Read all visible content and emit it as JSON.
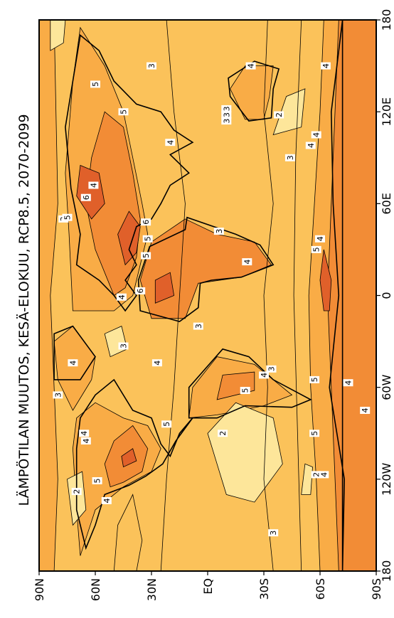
{
  "title": "LÄMPÖTILAN MUUTOS, KESÄ-ELOKUU, RCP8.5, 2070-2099",
  "lat_ticks": [
    "90N",
    "60N",
    "30N",
    "EQ",
    "30S",
    "60S",
    "90S"
  ],
  "lon_ticks": [
    "180",
    "120W",
    "60W",
    "0",
    "60E",
    "120E",
    "180"
  ],
  "colors": {
    "base": "#fbc25a",
    "level_2": "#fde69a",
    "level_4": "#f9ac46",
    "level_5": "#f28c36",
    "level_6": "#e0602a",
    "contour": "#000000"
  },
  "contour_labels": [
    {
      "value": "2",
      "lon": -128,
      "lat": 70
    },
    {
      "value": "4",
      "lon": -134,
      "lat": 54
    },
    {
      "value": "5",
      "lon": -121,
      "lat": 59
    },
    {
      "value": "4",
      "lon": -95,
      "lat": 65
    },
    {
      "value": "4",
      "lon": -90,
      "lat": 66
    },
    {
      "value": "3",
      "lon": -65,
      "lat": 80
    },
    {
      "value": "4",
      "lon": -44,
      "lat": 72
    },
    {
      "value": "3",
      "lon": -33,
      "lat": 45
    },
    {
      "value": "4",
      "lon": -44,
      "lat": 27
    },
    {
      "value": "5",
      "lon": -84,
      "lat": 22
    },
    {
      "value": "3",
      "lon": -155,
      "lat": -35
    },
    {
      "value": "2",
      "lon": -90,
      "lat": -8
    },
    {
      "value": "5",
      "lon": -62,
      "lat": -20
    },
    {
      "value": "4",
      "lon": -52,
      "lat": -30
    },
    {
      "value": "3",
      "lon": -48,
      "lat": -34
    },
    {
      "value": "3",
      "lon": -20,
      "lat": 5
    },
    {
      "value": "4",
      "lon": -1,
      "lat": 46
    },
    {
      "value": "6",
      "lon": 3,
      "lat": 36
    },
    {
      "value": "5",
      "lon": 26,
      "lat": 33
    },
    {
      "value": "5",
      "lon": 37,
      "lat": 32
    },
    {
      "value": "6",
      "lon": 48,
      "lat": 33
    },
    {
      "value": "3",
      "lon": 50,
      "lat": 77
    },
    {
      "value": "5",
      "lon": 51,
      "lat": 75
    },
    {
      "value": "6",
      "lon": 64,
      "lat": 65
    },
    {
      "value": "4",
      "lon": 72,
      "lat": 61
    },
    {
      "value": "3",
      "lon": 42,
      "lat": -6
    },
    {
      "value": "4",
      "lon": 22,
      "lat": -21
    },
    {
      "value": "4",
      "lon": 100,
      "lat": 20
    },
    {
      "value": "3",
      "lon": 114,
      "lat": -10
    },
    {
      "value": "3",
      "lon": 118,
      "lat": -10
    },
    {
      "value": "3",
      "lon": 122,
      "lat": -10
    },
    {
      "value": "5",
      "lon": 120,
      "lat": 45
    },
    {
      "value": "5",
      "lon": 138,
      "lat": 60
    },
    {
      "value": "3",
      "lon": 150,
      "lat": 30
    },
    {
      "value": "4",
      "lon": 150,
      "lat": -23
    },
    {
      "value": "2",
      "lon": 118,
      "lat": -38
    },
    {
      "value": "3",
      "lon": 90,
      "lat": -44
    },
    {
      "value": "4",
      "lon": 98,
      "lat": -55
    },
    {
      "value": "4",
      "lon": 105,
      "lat": -58
    },
    {
      "value": "4",
      "lon": 150,
      "lat": -63
    },
    {
      "value": "5",
      "lon": 30,
      "lat": -58
    },
    {
      "value": "4",
      "lon": 37,
      "lat": -60
    },
    {
      "value": "5",
      "lon": -55,
      "lat": -57
    },
    {
      "value": "5",
      "lon": -90,
      "lat": -57
    },
    {
      "value": "2",
      "lon": -117,
      "lat": -58
    },
    {
      "value": "4",
      "lon": -117,
      "lat": -62
    },
    {
      "value": "4",
      "lon": -57,
      "lat": -75
    },
    {
      "value": "4",
      "lon": -75,
      "lat": -84
    }
  ]
}
